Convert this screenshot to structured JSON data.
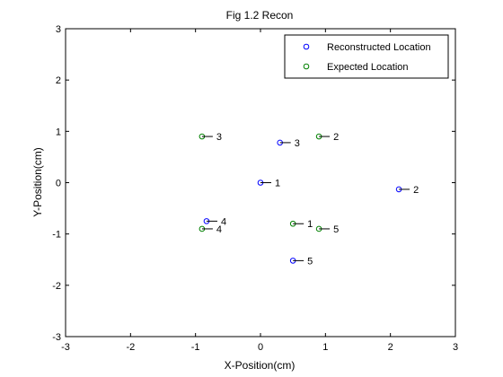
{
  "chart_data": {
    "type": "scatter",
    "title": "Fig 1.2 Recon",
    "xlabel": "X-Position(cm)",
    "ylabel": "Y-Position(cm)",
    "xlim": [
      -3,
      3
    ],
    "ylim": [
      -3,
      3
    ],
    "xticks": [
      "-3",
      "-2",
      "-1",
      "0",
      "1",
      "2",
      "3"
    ],
    "yticks": [
      "-3",
      "-2",
      "-1",
      "0",
      "1",
      "2",
      "3"
    ],
    "grid": false,
    "legend_position": "top-right",
    "series": [
      {
        "name": "Reconstructed Location",
        "color": "#0000ff",
        "marker": "circle",
        "points": [
          {
            "x": 0.0,
            "y": 0.0,
            "label": "1"
          },
          {
            "x": 2.13,
            "y": -0.13,
            "label": "2"
          },
          {
            "x": 0.3,
            "y": 0.78,
            "label": "3"
          },
          {
            "x": -0.83,
            "y": -0.75,
            "label": "4"
          },
          {
            "x": 0.5,
            "y": -1.52,
            "label": "5"
          }
        ]
      },
      {
        "name": "Expected Location",
        "color": "#008000",
        "marker": "circle",
        "points": [
          {
            "x": 0.5,
            "y": -0.8,
            "label": "1"
          },
          {
            "x": 0.9,
            "y": 0.9,
            "label": "2"
          },
          {
            "x": -0.9,
            "y": 0.9,
            "label": "3"
          },
          {
            "x": -0.9,
            "y": -0.9,
            "label": "4"
          },
          {
            "x": 0.9,
            "y": -0.9,
            "label": "5"
          }
        ]
      }
    ]
  }
}
